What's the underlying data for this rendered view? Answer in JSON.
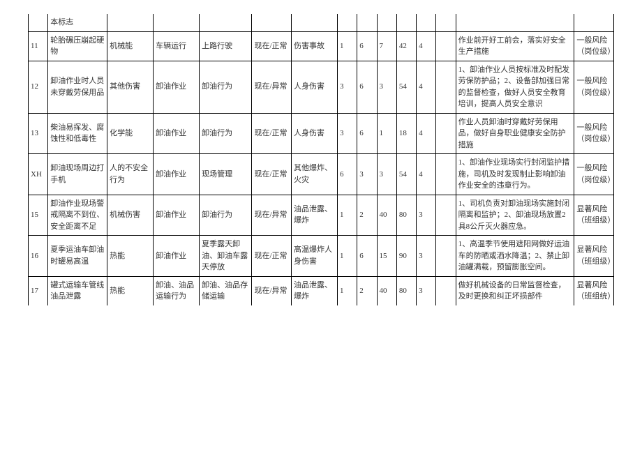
{
  "table": {
    "rows": [
      {
        "num": "",
        "hazard": "本标志",
        "energy": "",
        "act1": "",
        "act2": "",
        "state": "",
        "cons": "",
        "n1": "",
        "n2": "",
        "n3": "",
        "n4": "",
        "n5": "",
        "blank": "",
        "measure": "",
        "risk": ""
      },
      {
        "num": "11",
        "hazard": "轮胎碾压崩起硬物",
        "energy": "机械能",
        "act1": "车辆运行",
        "act2": "上路行驶",
        "state": "现在/正常",
        "cons": "伤害事故",
        "n1": "1",
        "n2": "6",
        "n3": "7",
        "n4": "42",
        "n5": "4",
        "blank": "",
        "measure": "作业前开好工前会，落实好安全生产措施",
        "risk": "一般风险（岗位级）"
      },
      {
        "num": "12",
        "hazard": "卸油作业时人员未穿戴劳保用品",
        "energy": "其他伤害",
        "act1": "卸油作业",
        "act2": "卸油行为",
        "state": "现在/异常",
        "cons": "人身伤害",
        "n1": "3",
        "n2": "6",
        "n3": "3",
        "n4": "54",
        "n5": "4",
        "blank": "",
        "measure": "1、卸油作业人员按标准及时配发劳保防护品；2、设备部加强日常的监督检查，做好人员安全教育培训，提高人员安全意识",
        "risk": "一般风险（岗位级）"
      },
      {
        "num": "13",
        "hazard": "柴油易挥发、腐蚀性和低毒性",
        "energy": "化学能",
        "act1": "卸油作业",
        "act2": "卸油行为",
        "state": "现在/正常",
        "cons": "人身伤害",
        "n1": "3",
        "n2": "6",
        "n3": "1",
        "n4": "18",
        "n5": "4",
        "blank": "",
        "measure": "作业人员卸油时穿戴好劳保用品，做好自身职业健康安全防护措施",
        "risk": "一般风险（岗位级）"
      },
      {
        "num": "XH",
        "hazard": "卸油现场周边打手机",
        "energy": "人的不安全行为",
        "act1": "卸油作业",
        "act2": "现场管理",
        "state": "现在/正常",
        "cons": "其他爆炸、火灾",
        "n1": "6",
        "n2": "3",
        "n3": "3",
        "n4": "54",
        "n5": "4",
        "blank": "",
        "measure": "1、卸油作业现场实行封闭监护措施，司机及时发现制止影响卸油作业安全的违章行为。",
        "risk": "一般风险（岗位级）"
      },
      {
        "num": "15",
        "hazard": "卸油作业现场警戒隔离不到位、安全距离不足",
        "energy": "机械伤害",
        "act1": "卸油作业",
        "act2": "卸油行为",
        "state": "现在/异常",
        "cons": "油品泄露、爆炸",
        "n1": "1",
        "n2": "2",
        "n3": "40",
        "n4": "80",
        "n5": "3",
        "blank": "",
        "measure": "1、司机负责对卸油现场实施封闭隔离和监护；2、卸油现场放置2具8公斤灭火器应急。",
        "risk": "显著风险（班组级）"
      },
      {
        "num": "16",
        "hazard": "夏季运油车卸油时罐易高温",
        "energy": "热能",
        "act1": "卸油作业",
        "act2": "夏季露天卸油、卸油车露天停放",
        "state": "现在/正常",
        "cons": "高温爆炸人身伤害",
        "n1": "1",
        "n2": "6",
        "n3": "15",
        "n4": "90",
        "n5": "3",
        "blank": "",
        "measure": "1、高温季节使用遮阳网做好运油车的防晒或洒水降温；2、禁止卸油罐满载，预留膨胀空间。",
        "risk": "显著风险（班组级）"
      },
      {
        "num": "17",
        "hazard": "罐式运输车管线油品泄露",
        "energy": "热能",
        "act1": "卸油、油品运输行为",
        "act2": "卸油、油品存储运输",
        "state": "现在/异常",
        "cons": "油品泄露、爆炸",
        "n1": "1",
        "n2": "2",
        "n3": "40",
        "n4": "80",
        "n5": "3",
        "blank": "",
        "measure": "做好机械设备的日常监督检查，及时更换和纠正坏损部件",
        "risk": "显著风险（班组统）"
      }
    ]
  }
}
